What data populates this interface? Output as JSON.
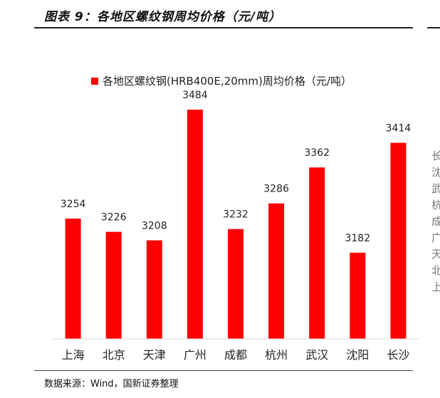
{
  "figure_title": "图表 9：各地区螺纹钢周均价格（元/吨）",
  "source_note": "数据来源：Wind，国新证券整理",
  "side_fragment": [
    "长",
    "沈",
    "武",
    "杭",
    "成",
    "广",
    "天",
    "北",
    "上"
  ],
  "colors": {
    "bar": "#ff0000",
    "axis": "#d9d9d9",
    "text": "#222222"
  },
  "chart_data": {
    "type": "bar",
    "title": "",
    "categories": [
      "上海",
      "北京",
      "天津",
      "广州",
      "成都",
      "杭州",
      "武汉",
      "沈阳",
      "长沙"
    ],
    "series": [
      {
        "name": "各地区螺纹钢(HRB400E,20mm)周均价格（元/吨）",
        "values": [
          3254,
          3226,
          3208,
          3484,
          3232,
          3286,
          3362,
          3182,
          3414
        ]
      }
    ],
    "ylim": [
      3000,
      3500
    ],
    "legend_position": "top",
    "grid": false
  }
}
